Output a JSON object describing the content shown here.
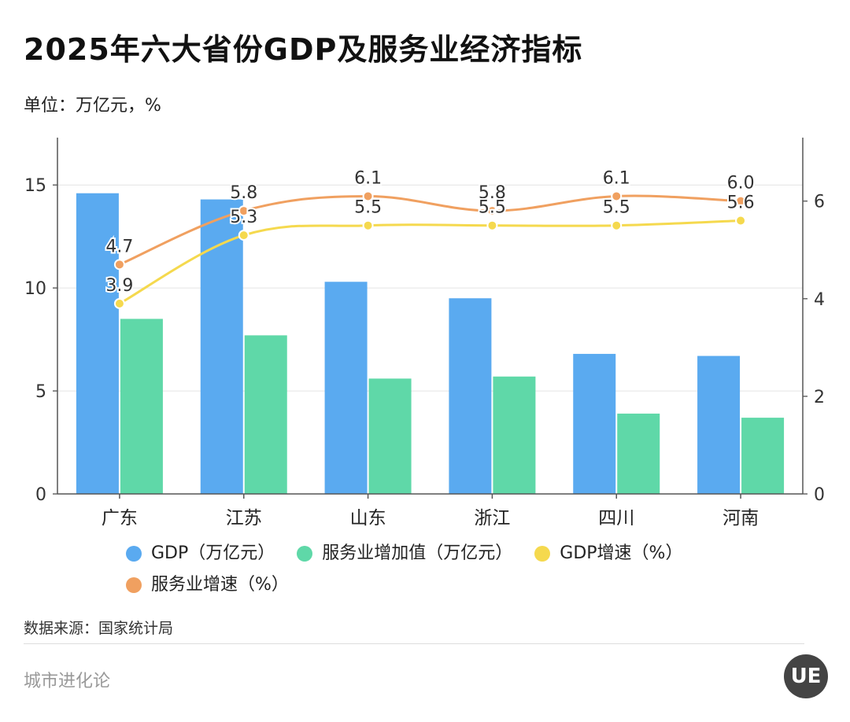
{
  "title": "2025年六大省份GDP及服务业经济指标",
  "unit": "单位：万亿元，%",
  "source": "数据来源：国家统计局",
  "brand": "城市进化论",
  "logo_text": "UE",
  "colors": {
    "gdp": "#5aaaf0",
    "service": "#5fd8a8",
    "gdp_growth": "#f5d94e",
    "service_growth": "#f0a060"
  },
  "legend": [
    {
      "label": "GDP（万亿元）",
      "color": "#5aaaf0"
    },
    {
      "label": "服务业增加值（万亿元）",
      "color": "#5fd8a8"
    },
    {
      "label": "GDP增速（%）",
      "color": "#f5d94e"
    },
    {
      "label": "服务业增速（%）",
      "color": "#f0a060"
    }
  ],
  "chart_data": {
    "type": "bar",
    "categories": [
      "广东",
      "江苏",
      "山东",
      "浙江",
      "四川",
      "河南"
    ],
    "series": [
      {
        "name": "GDP（万亿元）",
        "type": "bar",
        "axis": "left",
        "values": [
          14.6,
          14.3,
          10.3,
          9.5,
          6.8,
          6.7
        ]
      },
      {
        "name": "服务业增加值（万亿元）",
        "type": "bar",
        "axis": "left",
        "values": [
          8.5,
          7.7,
          5.6,
          5.7,
          3.9,
          3.7
        ]
      },
      {
        "name": "GDP增速（%）",
        "type": "line",
        "axis": "right",
        "values": [
          3.9,
          5.3,
          5.5,
          5.5,
          5.5,
          5.6
        ]
      },
      {
        "name": "服务业增速（%）",
        "type": "line",
        "axis": "right",
        "values": [
          4.7,
          5.8,
          6.1,
          5.8,
          6.1,
          6.0
        ]
      }
    ],
    "data_labels": {
      "GDP增速（%）": [
        "3.9",
        "5.3",
        "5.5",
        "5.5",
        "5.5",
        "5.6"
      ],
      "服务业增速（%）": [
        "4.7",
        "5.8",
        "6.1",
        "5.8",
        "6.1",
        "6.0"
      ]
    },
    "ylim_left": [
      0,
      17.3
    ],
    "ylim_right": [
      0,
      7.3
    ],
    "yticks_left": [
      0,
      5,
      10,
      15
    ],
    "yticks_right": [
      0,
      2,
      4,
      6
    ],
    "grid": true,
    "legend_position": "bottom"
  }
}
